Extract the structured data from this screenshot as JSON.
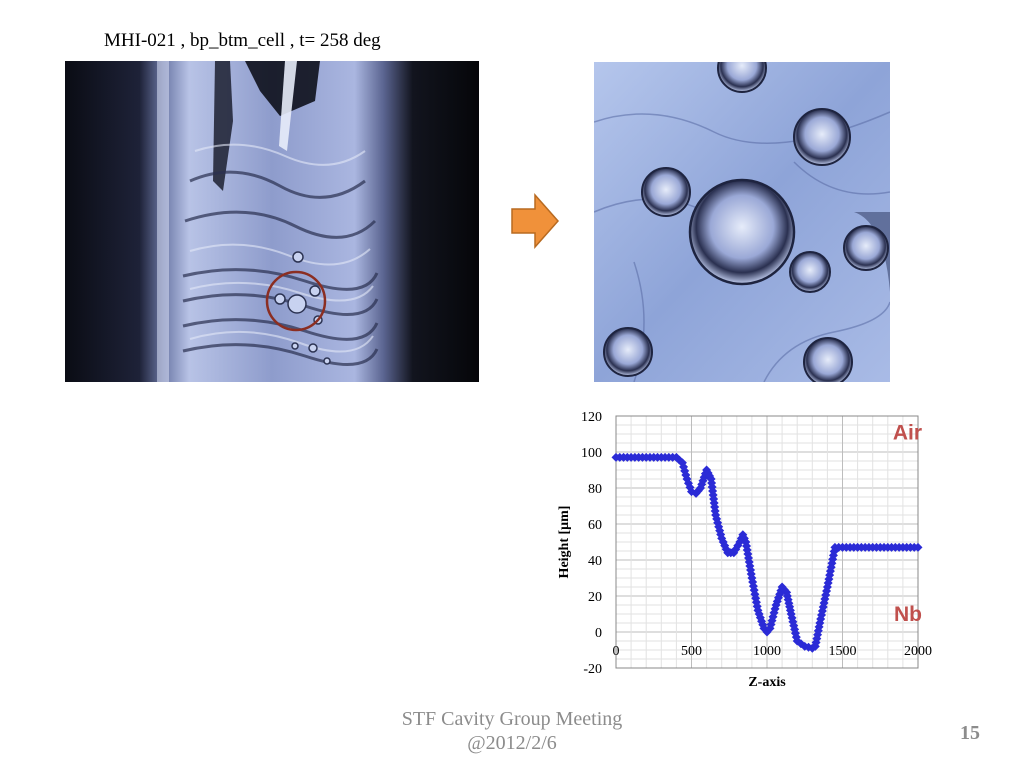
{
  "slide": {
    "title": "MHI-021 , bp_btm_cell , t= 258 deg",
    "footer_line1": "STF Cavity Group Meeting",
    "footer_line2": "@2012/2/6",
    "page_number": "15",
    "arrow_color": "#f0913a"
  },
  "chart_data": {
    "type": "scatter",
    "xlabel": "Z-axis",
    "ylabel": "Height [μm]",
    "xlim": [
      0,
      2000
    ],
    "ylim": [
      -20,
      120
    ],
    "x_ticks": [
      "0",
      "500",
      "1000",
      "1500",
      "2000"
    ],
    "y_ticks": [
      "120",
      "100",
      "80",
      "60",
      "40",
      "20",
      "0",
      "-20"
    ],
    "grid": true,
    "marker_color": "#2b2bd6",
    "annotations": [
      {
        "text": "Air",
        "color": "#c0504d"
      },
      {
        "text": "Nb",
        "color": "#c0504d"
      }
    ],
    "series": [
      {
        "x": [
          0,
          100,
          200,
          300,
          400,
          440,
          470,
          500,
          530,
          560,
          600,
          630,
          660,
          700,
          740,
          780,
          820,
          840,
          860,
          900,
          940,
          980,
          1000,
          1020,
          1060,
          1100,
          1130,
          1160,
          1200,
          1250,
          1300,
          1320,
          1350,
          1400,
          1450,
          1500,
          1600,
          1700,
          1800,
          1900,
          2000
        ],
        "y": [
          97,
          97,
          97,
          97,
          97,
          94,
          85,
          78,
          77,
          80,
          90,
          85,
          65,
          52,
          44,
          44,
          50,
          54,
          50,
          30,
          12,
          2,
          0,
          2,
          15,
          25,
          22,
          10,
          -5,
          -8,
          -9,
          -8,
          5,
          25,
          47,
          47,
          47,
          47,
          47,
          47,
          47
        ]
      }
    ]
  }
}
